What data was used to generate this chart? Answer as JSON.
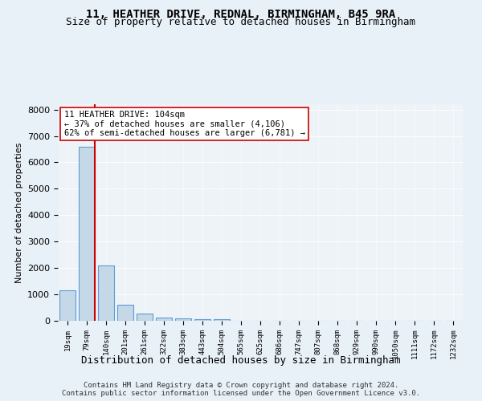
{
  "title1": "11, HEATHER DRIVE, REDNAL, BIRMINGHAM, B45 9RA",
  "title2": "Size of property relative to detached houses in Birmingham",
  "xlabel": "Distribution of detached houses by size in Birmingham",
  "ylabel": "Number of detached properties",
  "footer1": "Contains HM Land Registry data © Crown copyright and database right 2024.",
  "footer2": "Contains public sector information licensed under the Open Government Licence v3.0.",
  "bins": [
    "19sqm",
    "79sqm",
    "140sqm",
    "201sqm",
    "261sqm",
    "322sqm",
    "383sqm",
    "443sqm",
    "504sqm",
    "565sqm",
    "625sqm",
    "686sqm",
    "747sqm",
    "807sqm",
    "868sqm",
    "929sqm",
    "990sqm",
    "1050sqm",
    "1111sqm",
    "1172sqm",
    "1232sqm"
  ],
  "bar_heights": [
    1150,
    6600,
    2100,
    600,
    280,
    120,
    80,
    60,
    50,
    0,
    0,
    0,
    0,
    0,
    0,
    0,
    0,
    0,
    0,
    0,
    0
  ],
  "bar_color": "#c5d8e8",
  "bar_edge_color": "#5b9bd5",
  "ylim": [
    0,
    8200
  ],
  "yticks": [
    0,
    1000,
    2000,
    3000,
    4000,
    5000,
    6000,
    7000,
    8000
  ],
  "property_size": 104,
  "property_label": "11 HEATHER DRIVE: 104sqm",
  "annotation_line1": "← 37% of detached houses are smaller (4,106)",
  "annotation_line2": "62% of semi-detached houses are larger (6,781) →",
  "vline_color": "#cc0000",
  "annotation_box_color": "#ffffff",
  "annotation_box_edge": "#cc0000",
  "bg_color": "#e8f0f8",
  "plot_bg_color": "#eef3f8"
}
